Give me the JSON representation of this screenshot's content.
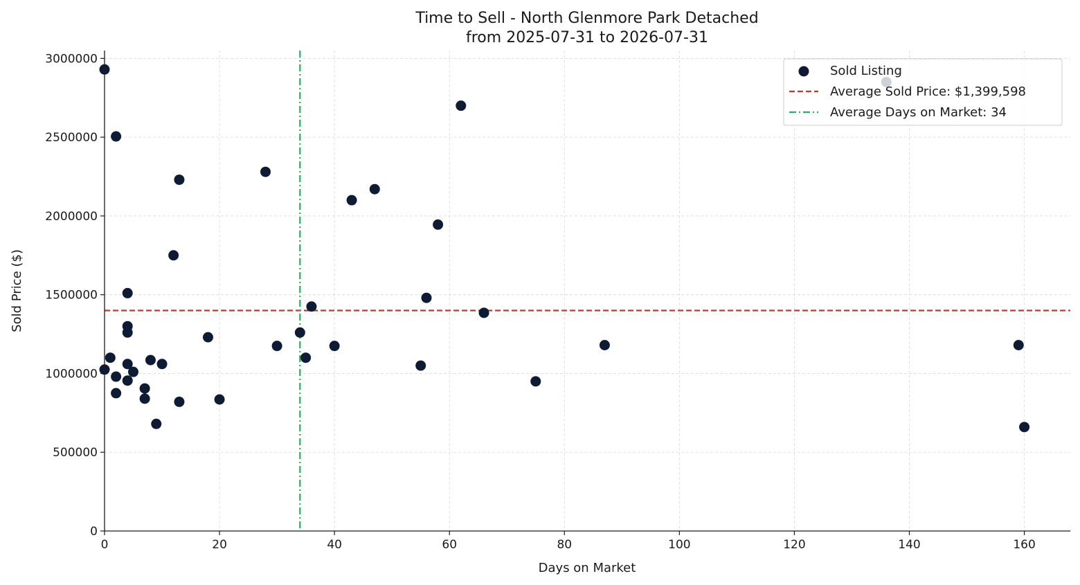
{
  "chart_data": {
    "type": "scatter",
    "title_line1": "Time to Sell - North Glenmore Park Detached",
    "title_line2": "from 2025-07-31 to 2026-07-31",
    "xlabel": "Days on Market",
    "ylabel": "Sold Price ($)",
    "xlim": [
      0,
      168
    ],
    "ylim": [
      0,
      3050000
    ],
    "x_ticks": [
      0,
      20,
      40,
      60,
      80,
      100,
      120,
      140,
      160
    ],
    "y_ticks": [
      0,
      500000,
      1000000,
      1500000,
      2000000,
      2500000,
      3000000
    ],
    "grid": true,
    "legend_position": "top-right",
    "series": [
      {
        "name": "Sold Listing",
        "color": "#0d1b35",
        "points": [
          [
            0,
            2930000
          ],
          [
            0,
            1025000
          ],
          [
            1,
            1100000
          ],
          [
            2,
            2505000
          ],
          [
            2,
            980000
          ],
          [
            2,
            875000
          ],
          [
            4,
            1510000
          ],
          [
            4,
            1300000
          ],
          [
            4,
            1260000
          ],
          [
            4,
            1060000
          ],
          [
            4,
            955000
          ],
          [
            5,
            1010000
          ],
          [
            7,
            905000
          ],
          [
            7,
            840000
          ],
          [
            8,
            1085000
          ],
          [
            9,
            680000
          ],
          [
            10,
            1060000
          ],
          [
            12,
            1750000
          ],
          [
            13,
            2230000
          ],
          [
            13,
            820000
          ],
          [
            18,
            1230000
          ],
          [
            20,
            835000
          ],
          [
            28,
            2280000
          ],
          [
            30,
            1175000
          ],
          [
            34,
            1260000
          ],
          [
            35,
            1100000
          ],
          [
            36,
            1425000
          ],
          [
            40,
            1175000
          ],
          [
            43,
            2100000
          ],
          [
            47,
            2170000
          ],
          [
            55,
            1050000
          ],
          [
            56,
            1480000
          ],
          [
            58,
            1945000
          ],
          [
            62,
            2700000
          ],
          [
            66,
            1385000
          ],
          [
            75,
            950000
          ],
          [
            87,
            1180000
          ],
          [
            136,
            2850000
          ],
          [
            159,
            1180000
          ],
          [
            160,
            660000
          ]
        ]
      }
    ],
    "reference_lines": [
      {
        "name": "Average Sold Price: $1,399,598",
        "orientation": "horizontal",
        "value": 1399598,
        "color": "#c0392b",
        "style": "dashed"
      },
      {
        "name": "Average Days on Market: 34",
        "orientation": "vertical",
        "value": 34,
        "color": "#27ae60",
        "style": "dashdot"
      }
    ]
  }
}
